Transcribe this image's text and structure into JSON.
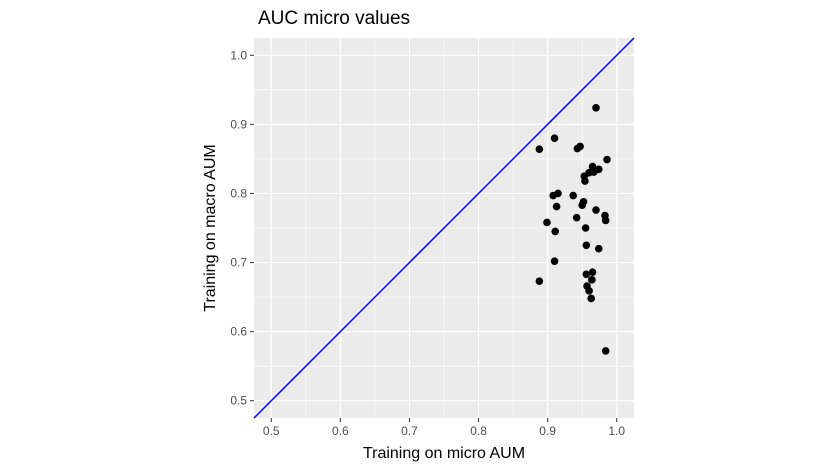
{
  "chart_data": {
    "type": "scatter",
    "title": "AUC micro values",
    "xlabel": "Training on micro AUM",
    "ylabel": "Training on macro AUM",
    "xlim": [
      0.475,
      1.025
    ],
    "ylim": [
      0.475,
      1.025
    ],
    "x_ticks": [
      "0.5",
      "0.6",
      "0.7",
      "0.8",
      "0.9",
      "1.0"
    ],
    "y_ticks": [
      "0.5",
      "0.6",
      "0.7",
      "0.8",
      "0.9",
      "1.0"
    ],
    "grid": true,
    "reference_line": {
      "type": "y=x",
      "color": "#0000ff"
    },
    "panel_color": "#ebebeb",
    "grid_color": "#ffffff",
    "point_color": "#000000",
    "points": [
      [
        0.888,
        0.864
      ],
      [
        0.91,
        0.88
      ],
      [
        0.943,
        0.865
      ],
      [
        0.947,
        0.868
      ],
      [
        0.97,
        0.924
      ],
      [
        0.986,
        0.849
      ],
      [
        0.965,
        0.839
      ],
      [
        0.974,
        0.835
      ],
      [
        0.967,
        0.831
      ],
      [
        0.96,
        0.83
      ],
      [
        0.953,
        0.825
      ],
      [
        0.954,
        0.818
      ],
      [
        0.908,
        0.797
      ],
      [
        0.915,
        0.8
      ],
      [
        0.937,
        0.797
      ],
      [
        0.952,
        0.788
      ],
      [
        0.95,
        0.783
      ],
      [
        0.913,
        0.781
      ],
      [
        0.97,
        0.776
      ],
      [
        0.983,
        0.768
      ],
      [
        0.984,
        0.761
      ],
      [
        0.942,
        0.765
      ],
      [
        0.899,
        0.758
      ],
      [
        0.955,
        0.75
      ],
      [
        0.911,
        0.745
      ],
      [
        0.956,
        0.725
      ],
      [
        0.974,
        0.72
      ],
      [
        0.91,
        0.702
      ],
      [
        0.965,
        0.686
      ],
      [
        0.956,
        0.683
      ],
      [
        0.964,
        0.675
      ],
      [
        0.888,
        0.673
      ],
      [
        0.957,
        0.666
      ],
      [
        0.96,
        0.659
      ],
      [
        0.963,
        0.648
      ],
      [
        0.984,
        0.572
      ]
    ]
  }
}
